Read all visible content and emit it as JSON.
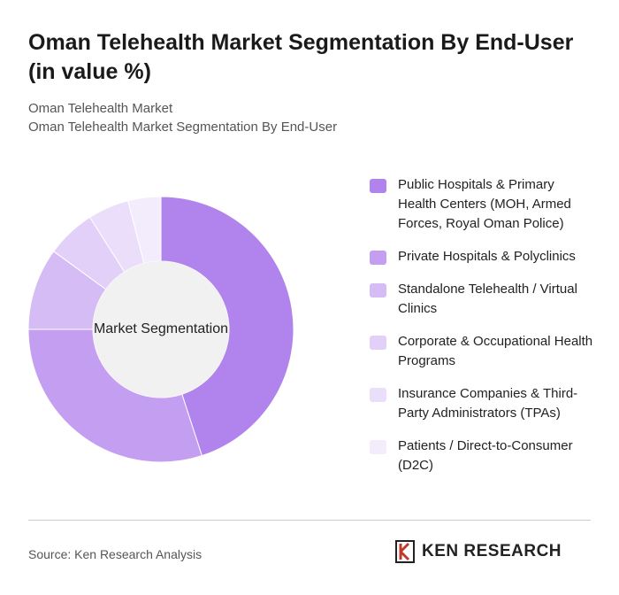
{
  "chart_data": {
    "type": "donut",
    "title": "Oman Telehealth Market Segmentation By End-User (in value %)",
    "subtitle": "Oman Telehealth Market",
    "subtitle2": "Oman Telehealth Market Segmentation By End-User",
    "center_label": "Market Segmentation",
    "categories": [
      "Public Hospitals & Primary Health Centers (MOH, Armed Forces, Royal Oman Police)",
      "Private Hospitals & Polyclinics",
      "Standalone Telehealth / Virtual Clinics",
      "Corporate & Occupational Health Programs",
      "Insurance Companies & Third-Party Administrators (TPAs)",
      "Patients / Direct-to-Consumer (D2C)"
    ],
    "values": [
      45,
      30,
      10,
      6,
      5,
      4
    ],
    "colors": [
      "#b084ec",
      "#c49ef1",
      "#d6bcf5",
      "#e2d0f8",
      "#eadefa",
      "#f3ecfc"
    ]
  },
  "source": "Source: Ken Research Analysis",
  "brand": "KEN RESEARCH"
}
